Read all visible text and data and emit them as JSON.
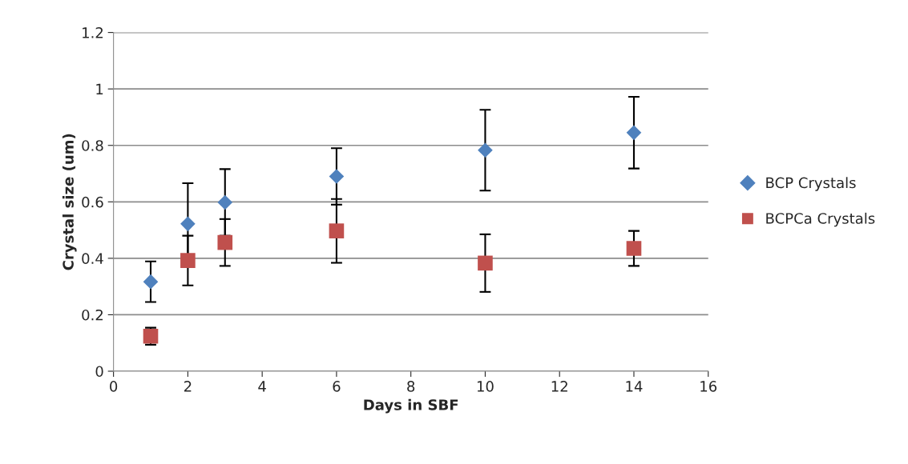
{
  "chart_data": {
    "type": "scatter",
    "xlabel": "Days in SBF",
    "ylabel": "Crystal size (um)",
    "xlim": [
      0,
      16
    ],
    "xticks": [
      0,
      2,
      4,
      6,
      8,
      10,
      12,
      14,
      16
    ],
    "ylim": [
      0,
      1.2
    ],
    "yticks": [
      0,
      0.2,
      0.4,
      0.6,
      0.8,
      1,
      1.2
    ],
    "grid": "y",
    "legend": "right",
    "series": [
      {
        "name": "BCP Crystals",
        "color": "#4f81bd",
        "marker": "diamond",
        "x": [
          1,
          2,
          3,
          6,
          10,
          14
        ],
        "values": [
          0.317,
          0.522,
          0.598,
          0.69,
          0.783,
          0.845
        ],
        "errors": [
          0.072,
          0.144,
          0.118,
          0.1,
          0.143,
          0.127
        ]
      },
      {
        "name": "BCPCa Crystals",
        "color": "#c0504d",
        "marker": "square",
        "x": [
          1,
          2,
          3,
          6,
          10,
          14
        ],
        "values": [
          0.124,
          0.392,
          0.456,
          0.497,
          0.383,
          0.435
        ],
        "errors": [
          0.03,
          0.088,
          0.083,
          0.113,
          0.102,
          0.062
        ]
      }
    ]
  }
}
